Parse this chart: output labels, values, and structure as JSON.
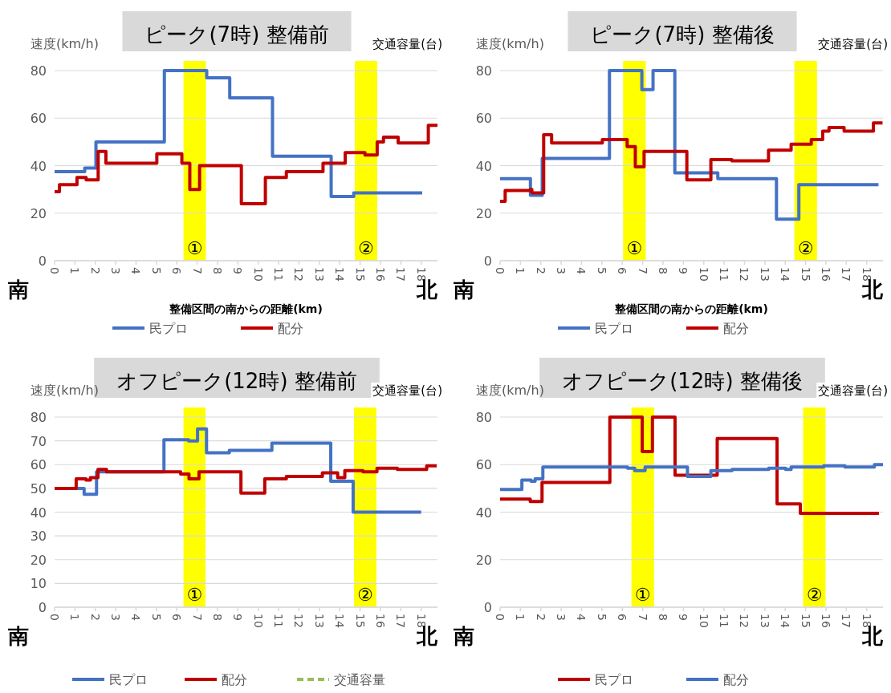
{
  "chart_data": [
    {
      "type": "step",
      "title": "ピーク(7時) 整備前",
      "ylabel": "速度(km/h)",
      "y2label": "交通容量(台)",
      "xlabel": "整備区間の南からの距離(km)",
      "xlim": [
        0,
        18.8
      ],
      "xticks": [
        0,
        1,
        2,
        3,
        4,
        5,
        6,
        7,
        8,
        9,
        10,
        11,
        12,
        13,
        14,
        15,
        16,
        17,
        18
      ],
      "ylim": [
        0,
        80
      ],
      "yticks": [
        0,
        20,
        40,
        60,
        80
      ],
      "grid": "y",
      "legend": "bottom",
      "series": [
        {
          "name": "民プロ",
          "color": "#4472c4",
          "x": [
            0,
            1.48,
            2.03,
            5.39,
            7.47,
            8.6,
            10.7,
            13.58,
            14.69,
            18.05
          ],
          "values": [
            37.5,
            39,
            50,
            80,
            77,
            68.5,
            44,
            27,
            28.5,
            28.5
          ]
        },
        {
          "name": "配分",
          "color": "#c00000",
          "x": [
            0,
            0.24,
            1.1,
            1.55,
            2.14,
            2.52,
            5.02,
            6.25,
            6.64,
            7.12,
            9.17,
            10.35,
            11.38,
            13.18,
            14.27,
            15.24,
            15.84,
            16.15,
            16.87,
            18.35,
            18.8
          ],
          "values": [
            29,
            32,
            35,
            34,
            46,
            41,
            45,
            41,
            30,
            40,
            24,
            35,
            37.5,
            41,
            45.5,
            44.5,
            50,
            52,
            49.5,
            57,
            57
          ]
        }
      ],
      "bands": [
        {
          "axis": "x",
          "from": 6.33,
          "to": 7.43,
          "label": "①",
          "color": "#ffff00"
        },
        {
          "axis": "x",
          "from": 14.74,
          "to": 15.84,
          "label": "②",
          "color": "#ffff00"
        }
      ],
      "annotations": [
        "南",
        "北"
      ]
    },
    {
      "type": "step",
      "title": "ピーク(7時) 整備後",
      "ylabel": "速度(km/h)",
      "y2label": "交通容量(台)",
      "xlabel": "整備区間の南からの距離(km)",
      "xlim": [
        0,
        18.8
      ],
      "xticks": [
        0,
        1,
        2,
        3,
        4,
        5,
        6,
        7,
        8,
        9,
        10,
        11,
        12,
        13,
        14,
        15,
        16,
        17,
        18
      ],
      "ylim": [
        0,
        80
      ],
      "yticks": [
        0,
        20,
        40,
        60,
        80
      ],
      "grid": "y",
      "legend": "bottom",
      "series": [
        {
          "name": "民プロ",
          "color": "#4472c4",
          "x": [
            0,
            1.49,
            2.07,
            5.37,
            6.96,
            7.51,
            8.58,
            10.69,
            13.57,
            14.67,
            18.58
          ],
          "values": [
            34.5,
            27.5,
            43,
            80,
            72,
            80,
            37,
            34.5,
            17.5,
            32,
            32
          ]
        },
        {
          "name": "配分",
          "color": "#c00000",
          "x": [
            0,
            0.25,
            1.49,
            1.56,
            2.14,
            2.53,
            5.02,
            6.24,
            6.64,
            7.07,
            9.17,
            10.35,
            11.38,
            13.18,
            14.29,
            15.28,
            15.84,
            16.15,
            16.89,
            18.33,
            18.78
          ],
          "values": [
            25,
            29.5,
            30,
            28.5,
            53,
            49.5,
            51,
            48,
            39.5,
            46,
            34,
            42.5,
            42,
            46.5,
            49,
            51,
            54.5,
            56,
            54.5,
            58,
            58
          ]
        }
      ],
      "bands": [
        {
          "axis": "x",
          "from": 6.04,
          "to": 7.15,
          "label": "①",
          "color": "#ffff00"
        },
        {
          "axis": "x",
          "from": 14.45,
          "to": 15.56,
          "label": "②",
          "color": "#ffff00"
        }
      ],
      "annotations": [
        "南",
        "北"
      ]
    },
    {
      "type": "step",
      "title": "オフピーク(12時) 整備前",
      "ylabel": "速度(km/h)",
      "y2label": "交通容量(台)",
      "xlim": [
        0,
        18.8
      ],
      "xticks": [
        0,
        1,
        2,
        3,
        4,
        5,
        6,
        7,
        8,
        9,
        10,
        11,
        12,
        13,
        14,
        15,
        16,
        17,
        18
      ],
      "ylim": [
        0,
        80
      ],
      "yticks": [
        0,
        10,
        20,
        30,
        40,
        50,
        60,
        70,
        80
      ],
      "grid": "y",
      "legend": "bottom",
      "series": [
        {
          "name": "民プロ",
          "color": "#4472c4",
          "x": [
            0,
            1.45,
            2.06,
            5.37,
            6.58,
            7.02,
            7.46,
            8.58,
            10.67,
            13.56,
            14.66,
            18.0
          ],
          "values": [
            50,
            47.5,
            57,
            70.5,
            70,
            75,
            65,
            66,
            69,
            53,
            40,
            40
          ]
        },
        {
          "name": "配分",
          "color": "#c00000",
          "x": [
            0,
            1.06,
            1.54,
            1.76,
            2.13,
            2.55,
            6.19,
            6.6,
            7.09,
            9.15,
            10.32,
            11.38,
            13.15,
            13.9,
            14.25,
            15.14,
            15.83,
            16.83,
            18.27,
            18.76
          ],
          "values": [
            50,
            54,
            53.5,
            54.5,
            58,
            57,
            56,
            54,
            57,
            48,
            54,
            55,
            56.5,
            54.5,
            57.5,
            57,
            58.5,
            58,
            59.5,
            59.5
          ]
        },
        {
          "name": "交通容量",
          "color": "#9bbb59",
          "line_style": "dashed"
        }
      ],
      "bands": [
        {
          "axis": "x",
          "from": 6.33,
          "to": 7.41,
          "label": "①",
          "color": "#ffff00"
        },
        {
          "axis": "x",
          "from": 14.7,
          "to": 15.8,
          "label": "②",
          "color": "#ffff00"
        }
      ],
      "annotations": [
        "南",
        "北"
      ]
    },
    {
      "type": "step",
      "title": "オフピーク(12時) 整備後",
      "ylabel": "速度(km/h)",
      "y2label": "交通容量(台)",
      "xlim": [
        0,
        18.8
      ],
      "xticks": [
        0,
        1,
        2,
        3,
        4,
        5,
        6,
        7,
        8,
        9,
        10,
        11,
        12,
        13,
        14,
        15,
        16,
        17,
        18
      ],
      "ylim": [
        0,
        80
      ],
      "yticks": [
        0,
        20,
        40,
        60,
        80
      ],
      "grid": "y",
      "legend": "bottom",
      "series": [
        {
          "name": "民プロ",
          "color": "#c00000",
          "x": [
            0,
            1.48,
            2.06,
            5.39,
            6.98,
            7.48,
            8.59,
            10.66,
            13.6,
            14.74,
            18.6
          ],
          "values": [
            45.5,
            44.5,
            52.5,
            80,
            65.5,
            80,
            55.5,
            71,
            43.5,
            39.5,
            39.5
          ]
        },
        {
          "name": "配分",
          "color": "#4472c4",
          "x": [
            0,
            1.07,
            1.52,
            1.72,
            2.1,
            2.52,
            6.26,
            6.61,
            7.12,
            9.2,
            10.35,
            11.39,
            13.19,
            14.02,
            14.29,
            15.89,
            16.93,
            18.38,
            18.8
          ],
          "values": [
            49.5,
            53.5,
            53,
            54,
            59,
            59,
            58.5,
            57.5,
            59,
            55,
            57.5,
            58,
            58.5,
            58,
            59,
            59.5,
            59,
            60,
            60
          ]
        }
      ],
      "bands": [
        {
          "axis": "x",
          "from": 6.45,
          "to": 7.56,
          "label": "①",
          "color": "#ffff00"
        },
        {
          "axis": "x",
          "from": 14.88,
          "to": 15.98,
          "label": "②",
          "color": "#ffff00"
        }
      ],
      "annotations": [
        "南",
        "北"
      ]
    }
  ]
}
